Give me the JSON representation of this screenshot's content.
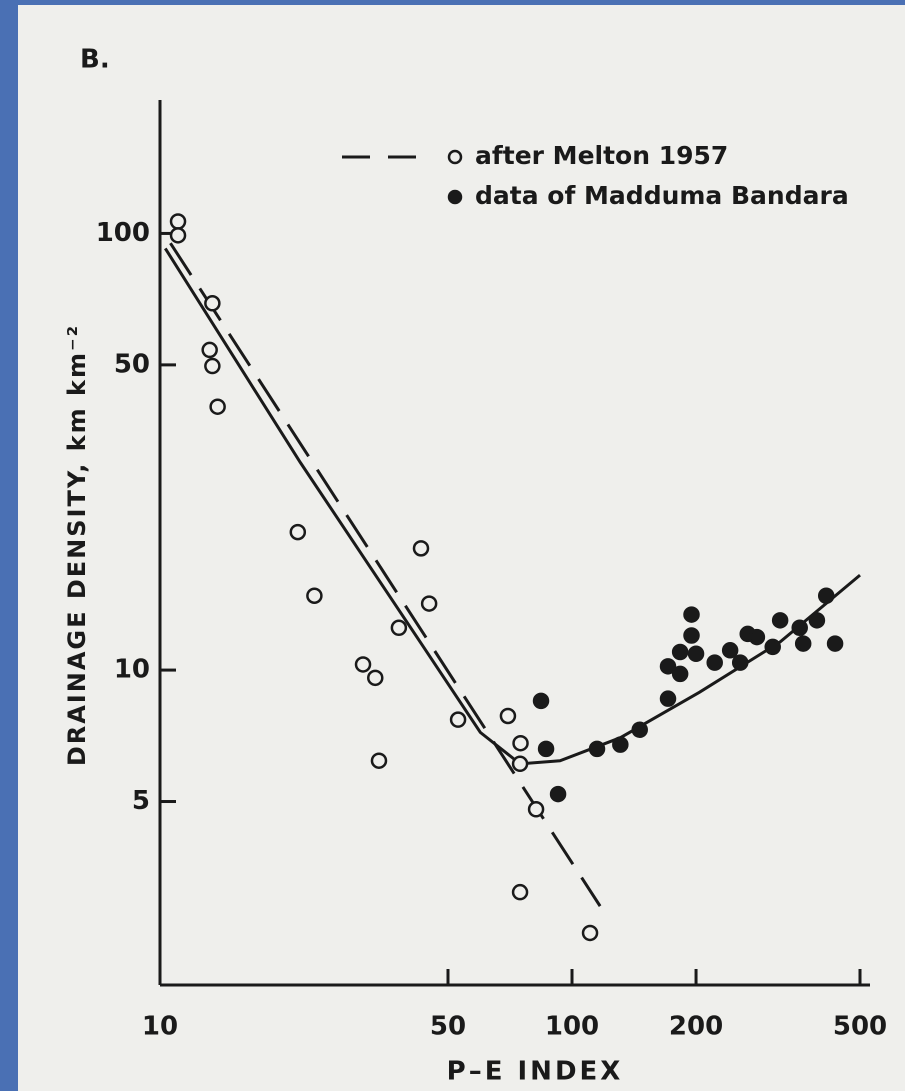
{
  "chart_data": {
    "type": "scatter",
    "panel_label": "B.",
    "xlabel": "P–E INDEX",
    "ylabel": "DRAINAGE DENSITY, km km⁻²",
    "xscale": "log",
    "yscale": "log",
    "xlim": [
      10,
      500
    ],
    "ylim": [
      1.9,
      200
    ],
    "xticks": [
      10,
      50,
      100,
      200,
      500
    ],
    "yticks": [
      5,
      10,
      50,
      100
    ],
    "series": [
      {
        "name": "after Melton 1957",
        "color": "#1a1a1a",
        "marker": "open",
        "x": [
          11.06,
          11.06,
          13.4,
          13.2,
          13.4,
          13.8,
          21.6,
          23.7,
          31.1,
          33.3,
          38.0,
          45.0,
          43.0,
          52.9,
          69.9,
          75.0,
          74.8,
          81.8,
          74.8,
          110.6,
          34.0
        ],
        "values": [
          106.5,
          99,
          69.2,
          54.1,
          49.7,
          40.1,
          20.7,
          14.8,
          10.3,
          9.6,
          12.5,
          14.2,
          19.0,
          7.7,
          7.85,
          6.8,
          6.1,
          4.8,
          3.1,
          2.5,
          6.2
        ]
      },
      {
        "name": "data of Madduma Bandara",
        "color": "#1a1a1a",
        "marker": "filled",
        "x": [
          84.1,
          86.5,
          92.5,
          115,
          131,
          146,
          171,
          171,
          183,
          183,
          195,
          195,
          200,
          222,
          242,
          256,
          267,
          281,
          307,
          320,
          357,
          364,
          393,
          414,
          435
        ],
        "values": [
          8.5,
          6.6,
          5.2,
          6.6,
          6.75,
          7.3,
          8.6,
          10.2,
          11.0,
          9.8,
          12.0,
          13.4,
          10.9,
          10.4,
          11.1,
          10.4,
          12.1,
          11.9,
          11.3,
          13.0,
          12.5,
          11.5,
          13.0,
          14.8,
          11.5
        ]
      }
    ],
    "fit_lines": [
      {
        "style": "dashed",
        "color": "#1a1a1a",
        "x": [
          10.6,
          117
        ],
        "values": [
          95,
          2.88
        ]
      },
      {
        "style": "solid",
        "color": "#1a1a1a",
        "x": [
          10.3,
          21.9,
          42.8,
          59.9,
          74.8,
          93.5,
          131,
          204,
          320,
          500
        ],
        "values": [
          92.4,
          29.9,
          11.6,
          7.2,
          6.1,
          6.2,
          7.0,
          8.9,
          11.6,
          16.5
        ]
      }
    ],
    "legend": "top-right"
  }
}
